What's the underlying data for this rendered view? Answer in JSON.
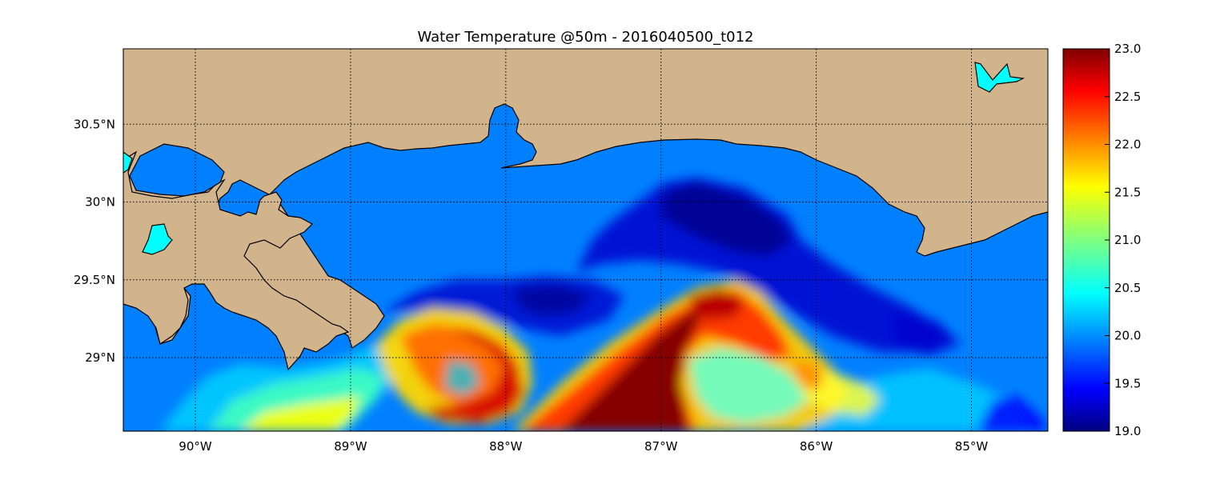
{
  "title": "Water Temperature @50m - 2016040500_t012",
  "colors": {
    "land": "#d2b48c",
    "shelf_water": "#0080ff",
    "inland_water": "#00ffff",
    "coastline": "#000000"
  },
  "map": {
    "lon_range": [
      -90.5,
      -84.5
    ],
    "lat_range": [
      28.55,
      31.0
    ],
    "grid_lines": "dotted",
    "lon_ticks": [
      {
        "value": -90,
        "label": "90°W"
      },
      {
        "value": -89,
        "label": "89°W"
      },
      {
        "value": -88,
        "label": "88°W"
      },
      {
        "value": -87,
        "label": "87°W"
      },
      {
        "value": -86,
        "label": "86°W"
      },
      {
        "value": -85,
        "label": "85°W"
      }
    ],
    "lat_ticks": [
      {
        "value": 30.5,
        "label": "30.5°N"
      },
      {
        "value": 30.0,
        "label": "30°N"
      },
      {
        "value": 29.5,
        "label": "29.5°N"
      },
      {
        "value": 29.0,
        "label": "29°N"
      }
    ]
  },
  "colorbar": {
    "colormap": "jet",
    "range": [
      19.0,
      23.0
    ],
    "ticks": [
      "19.0",
      "19.5",
      "20.0",
      "20.5",
      "21.0",
      "21.5",
      "22.0",
      "22.5",
      "23.0"
    ]
  }
}
